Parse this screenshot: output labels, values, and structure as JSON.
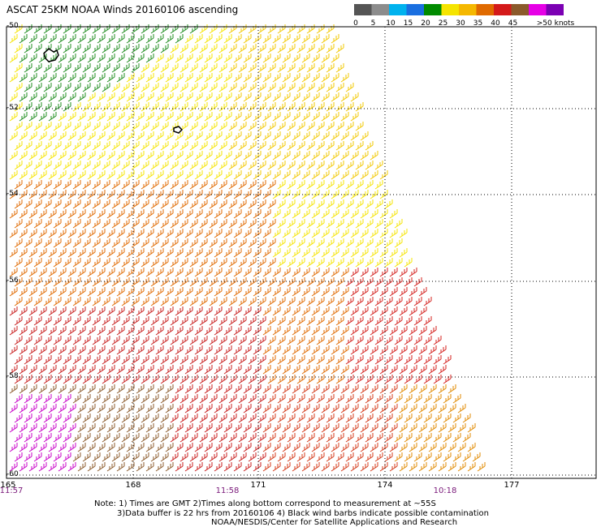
{
  "title": "ASCAT 25KM NOAA Winds 20160106 ascending",
  "legend": {
    "bins": [
      {
        "label": "0",
        "color": "#555555"
      },
      {
        "label": "5",
        "color": "#8c8c8c"
      },
      {
        "label": "10",
        "color": "#00b2ee"
      },
      {
        "label": "15",
        "color": "#1a6fe0"
      },
      {
        "label": "20",
        "color": "#008b00"
      },
      {
        "label": "25",
        "color": "#f5e400"
      },
      {
        "label": "30",
        "color": "#f5b800"
      },
      {
        "label": "35",
        "color": "#e06a00"
      },
      {
        "label": "40",
        "color": "#d41a1a"
      },
      {
        "label": "45",
        "color": "#8b5a2b"
      },
      {
        "label": "",
        "color": "#e600e6"
      },
      {
        "label": "",
        "color": "#7b00b3"
      }
    ],
    "end_label": ">50 knots"
  },
  "map": {
    "lat_labels": [
      "-50",
      "-52",
      "-54",
      "-56",
      "-58",
      "-60"
    ],
    "lon_labels": [
      "165",
      "168",
      "171",
      "174",
      "177"
    ],
    "time_labels": [
      "11:57",
      "11:58",
      "10:18"
    ]
  },
  "notes": {
    "line1": "Note: 1) Times are GMT 2)Times along bottom correspond to measurement at ~55S",
    "line2": "3)Data buffer is 22 hrs from 20160106 4) Black wind barbs indicate possible contamination",
    "line3": "NOAA/NESDIS/Center for Satellite Applications and Research"
  }
}
